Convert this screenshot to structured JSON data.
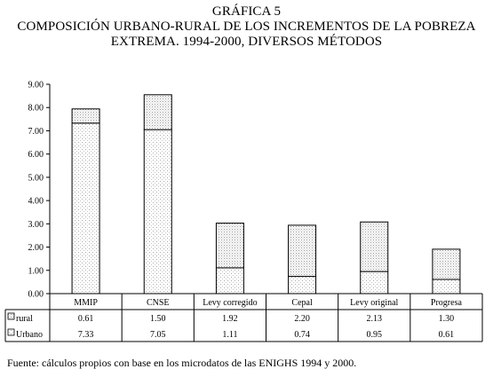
{
  "figure": {
    "label": "GRÁFICA 5",
    "title_line1": "COMPOSICIÓN URBANO-RURAL DE LOS INCREMENTOS DE LA POBREZA",
    "title_line2": "EXTREMA. 1994-2000, DIVERSOS MÉTODOS"
  },
  "source": "Fuente: cálculos propios con base en los microdatos de las ENIGHS 1994 y 2000.",
  "chart_data": {
    "type": "bar",
    "stacked": true,
    "categories": [
      "MMIP",
      "CNSE",
      "Levy corregido",
      "Cepal",
      "Levy original",
      "Progresa"
    ],
    "series": [
      {
        "name": "Urbano",
        "values": [
          7.33,
          7.05,
          1.11,
          0.74,
          0.95,
          0.61
        ]
      },
      {
        "name": "rural",
        "values": [
          0.61,
          1.5,
          1.92,
          2.2,
          2.13,
          1.3
        ]
      }
    ],
    "table_rows": [
      {
        "label": "rural",
        "values": [
          "0.61",
          "1.50",
          "1.92",
          "2.20",
          "2.13",
          "1.30"
        ]
      },
      {
        "label": "Urbano",
        "values": [
          "7.33",
          "7.05",
          "1.11",
          "0.74",
          "0.95",
          "0.61"
        ]
      }
    ],
    "ylim": [
      0,
      9
    ],
    "yticks": [
      "0.00",
      "1.00",
      "2.00",
      "3.00",
      "4.00",
      "5.00",
      "6.00",
      "7.00",
      "8.00",
      "9.00"
    ],
    "legend_placement": "data-table",
    "grid": false
  }
}
